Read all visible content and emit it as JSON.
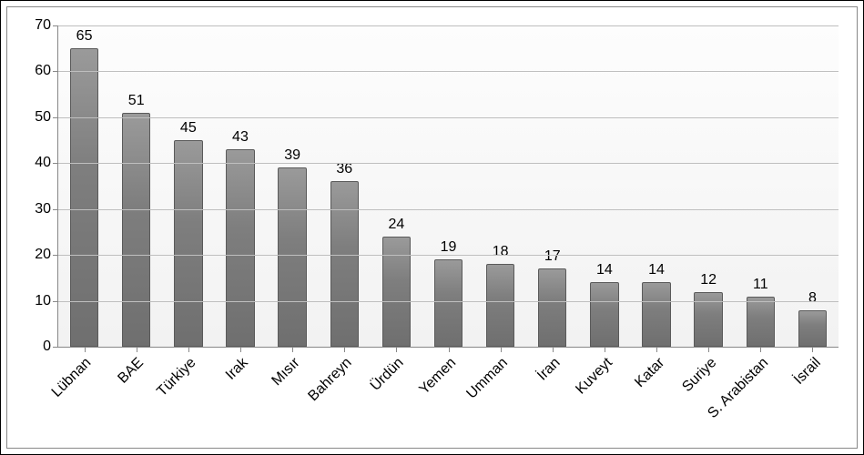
{
  "chart": {
    "type": "bar",
    "categories": [
      "Lübnan",
      "BAE",
      "Türkiye",
      "Irak",
      "Mısır",
      "Bahreyn",
      "Ürdün",
      "Yemen",
      "Umman",
      "İran",
      "Kuveyt",
      "Katar",
      "Suriye",
      "S. Arabistan",
      "İsrail"
    ],
    "values": [
      65,
      51,
      45,
      43,
      39,
      36,
      24,
      19,
      18,
      17,
      14,
      14,
      12,
      11,
      8
    ],
    "bar_color": "#808080",
    "bar_border_color": "#5a5a5a",
    "background_color": "#ffffff",
    "plot_bg_gradient_top": "#fdfdfd",
    "plot_bg_gradient_bottom": "#f2f2f2",
    "grid_color": "#bfbfbf",
    "axis_color": "#888888",
    "ylim": [
      0,
      70
    ],
    "ytick_step": 10,
    "yticks": [
      0,
      10,
      20,
      30,
      40,
      50,
      60,
      70
    ],
    "label_fontsize": 16,
    "value_label_fontsize": 16,
    "xlabel_rotation_deg": -45,
    "bar_width_ratio": 0.55,
    "outer_border_color": "#000000",
    "inner_border_color": "#888888"
  }
}
